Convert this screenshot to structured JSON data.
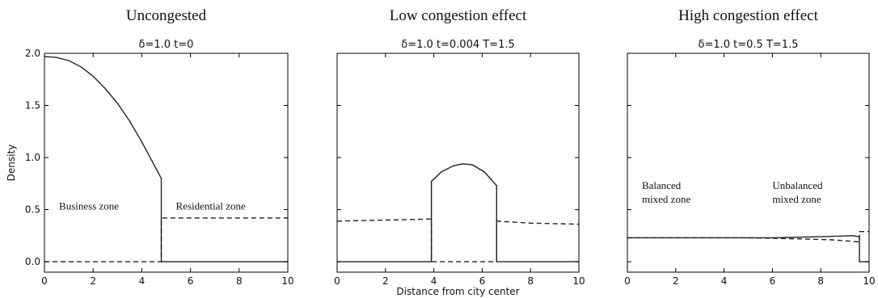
{
  "chart_data": [
    {
      "type": "line",
      "heading": "Uncongested",
      "title": "δ=1.0 t=0",
      "xlabel": "",
      "ylabel": "Density",
      "xlim": [
        0,
        10
      ],
      "ylim": [
        -0.1,
        2.0
      ],
      "xticks": [
        "0",
        "2",
        "4",
        "6",
        "8",
        "10"
      ],
      "yticks": [
        "0.0",
        "0.5",
        "1.0",
        "1.5",
        "2.0"
      ],
      "annotations": [
        {
          "lines": [
            "Business zone"
          ],
          "x": 0.6,
          "y": 0.5
        },
        {
          "lines": [
            "Residential zone"
          ],
          "x": 5.4,
          "y": 0.5
        }
      ],
      "series": [
        {
          "style": "solid",
          "points": [
            [
              0,
              1.97
            ],
            [
              0.5,
              1.96
            ],
            [
              1,
              1.93
            ],
            [
              1.5,
              1.87
            ],
            [
              2,
              1.78
            ],
            [
              2.5,
              1.66
            ],
            [
              3,
              1.52
            ],
            [
              3.5,
              1.35
            ],
            [
              4,
              1.15
            ],
            [
              4.5,
              0.93
            ],
            [
              4.8,
              0.8
            ],
            [
              4.8,
              0.0
            ],
            [
              10,
              0.0
            ]
          ]
        },
        {
          "style": "dashed",
          "points": [
            [
              0,
              0.0
            ],
            [
              4.8,
              0.0
            ],
            [
              4.8,
              0.42
            ],
            [
              10,
              0.42
            ]
          ]
        }
      ]
    },
    {
      "type": "line",
      "heading": "Low congestion effect",
      "title": "δ=1.0 t=0.004 T=1.5",
      "xlabel": "Distance from city center",
      "ylabel": "",
      "xlim": [
        0,
        10
      ],
      "ylim": [
        -0.1,
        2.0
      ],
      "xticks": [
        "0",
        "2",
        "4",
        "6",
        "8",
        "10"
      ],
      "yticks": [],
      "annotations": [],
      "series": [
        {
          "style": "solid",
          "points": [
            [
              0,
              0.0
            ],
            [
              3.9,
              0.0
            ],
            [
              3.9,
              0.77
            ],
            [
              4.3,
              0.86
            ],
            [
              4.8,
              0.92
            ],
            [
              5.2,
              0.94
            ],
            [
              5.6,
              0.93
            ],
            [
              6.1,
              0.86
            ],
            [
              6.6,
              0.73
            ],
            [
              6.6,
              0.0
            ],
            [
              10,
              0.0
            ]
          ]
        },
        {
          "style": "dashed",
          "points": [
            [
              0,
              0.39
            ],
            [
              2,
              0.4
            ],
            [
              3.9,
              0.41
            ],
            [
              3.9,
              0.0
            ],
            [
              6.6,
              0.0
            ],
            [
              6.6,
              0.39
            ],
            [
              8,
              0.37
            ],
            [
              10,
              0.36
            ]
          ]
        }
      ]
    },
    {
      "type": "line",
      "heading": "High congestion effect",
      "title": "δ=1.0 t=0.5 T=1.5",
      "xlabel": "",
      "ylabel": "",
      "xlim": [
        0,
        10
      ],
      "ylim": [
        -0.1,
        2.0
      ],
      "xticks": [
        "0",
        "2",
        "4",
        "6",
        "8",
        "10"
      ],
      "yticks": [],
      "annotations": [
        {
          "lines": [
            "Balanced",
            "mixed zone"
          ],
          "x": 0.6,
          "y": 0.55
        },
        {
          "lines": [
            "Unbalanced",
            "mixed zone"
          ],
          "x": 6.0,
          "y": 0.55
        }
      ],
      "series": [
        {
          "style": "solid",
          "points": [
            [
              0,
              0.23
            ],
            [
              2,
              0.23
            ],
            [
              4,
              0.23
            ],
            [
              6,
              0.23
            ],
            [
              8,
              0.24
            ],
            [
              9.3,
              0.25
            ],
            [
              9.6,
              0.24
            ],
            [
              9.6,
              0.0
            ],
            [
              10,
              0.0
            ]
          ]
        },
        {
          "style": "dashed",
          "points": [
            [
              0,
              0.23
            ],
            [
              3,
              0.23
            ],
            [
              5,
              0.23
            ],
            [
              7,
              0.22
            ],
            [
              8.5,
              0.21
            ],
            [
              9.6,
              0.19
            ],
            [
              9.6,
              0.29
            ],
            [
              10,
              0.29
            ]
          ]
        }
      ]
    }
  ]
}
